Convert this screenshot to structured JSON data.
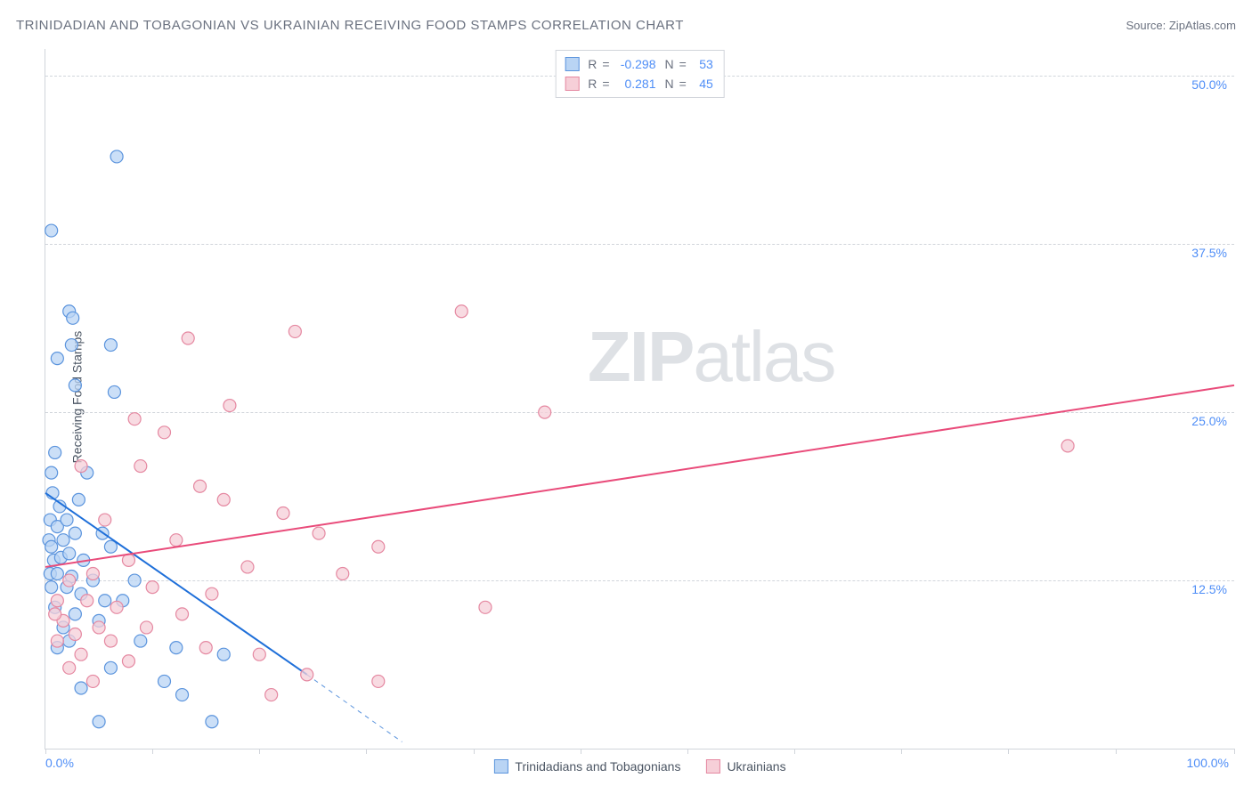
{
  "header": {
    "title": "TRINIDADIAN AND TOBAGONIAN VS UKRAINIAN RECEIVING FOOD STAMPS CORRELATION CHART",
    "source_prefix": "Source: ",
    "source_name": "ZipAtlas.com"
  },
  "watermark": {
    "zip": "ZIP",
    "atlas": "atlas"
  },
  "chart": {
    "type": "scatter-correlation",
    "ylabel": "Receiving Food Stamps",
    "xlim": [
      0,
      100
    ],
    "ylim": [
      0,
      52
    ],
    "xtick_positions_pct": [
      0,
      9,
      18,
      27,
      36,
      45,
      54,
      63,
      72,
      81,
      90,
      100
    ],
    "xaxis_label_0": "0.0%",
    "xaxis_label_100": "100.0%",
    "yticks": [
      {
        "value": 12.5,
        "label": "12.5%"
      },
      {
        "value": 25.0,
        "label": "25.0%"
      },
      {
        "value": 37.5,
        "label": "37.5%"
      },
      {
        "value": 50.0,
        "label": "50.0%"
      }
    ],
    "grid_color": "#d1d5db",
    "background_color": "#ffffff",
    "axis_label_color": "#4f8ef7",
    "marker_radius": 7,
    "marker_stroke_width": 1.2,
    "trend_line_width": 2,
    "trend_dash_width": 1,
    "series": [
      {
        "id": "trinidad",
        "name": "Trinidadians and Tobagonians",
        "fill": "#b9d4f4",
        "stroke": "#5b94dd",
        "line_color": "#1e6fd9",
        "corr": {
          "R_label": "R",
          "R_value": "-0.298",
          "N_label": "N",
          "N_value": "53",
          "eq": "="
        },
        "trend": {
          "x1": 0,
          "y1": 19.0,
          "x2": 22,
          "y2": 5.5,
          "dash_to_x": 30,
          "dash_to_y": 0.5
        },
        "points": [
          {
            "x": 0.5,
            "y": 38.5
          },
          {
            "x": 6.0,
            "y": 44.0
          },
          {
            "x": 1.0,
            "y": 29.0
          },
          {
            "x": 2.0,
            "y": 32.5
          },
          {
            "x": 2.3,
            "y": 32.0
          },
          {
            "x": 2.2,
            "y": 30.0
          },
          {
            "x": 5.5,
            "y": 30.0
          },
          {
            "x": 2.5,
            "y": 27.0
          },
          {
            "x": 5.8,
            "y": 26.5
          },
          {
            "x": 0.8,
            "y": 22.0
          },
          {
            "x": 0.5,
            "y": 20.5
          },
          {
            "x": 0.6,
            "y": 19.0
          },
          {
            "x": 3.5,
            "y": 20.5
          },
          {
            "x": 1.2,
            "y": 18.0
          },
          {
            "x": 0.4,
            "y": 17.0
          },
          {
            "x": 1.0,
            "y": 16.5
          },
          {
            "x": 1.8,
            "y": 17.0
          },
          {
            "x": 2.8,
            "y": 18.5
          },
          {
            "x": 0.3,
            "y": 15.5
          },
          {
            "x": 0.5,
            "y": 15.0
          },
          {
            "x": 1.5,
            "y": 15.5
          },
          {
            "x": 2.5,
            "y": 16.0
          },
          {
            "x": 4.8,
            "y": 16.0
          },
          {
            "x": 5.5,
            "y": 15.0
          },
          {
            "x": 0.7,
            "y": 14.0
          },
          {
            "x": 1.3,
            "y": 14.2
          },
          {
            "x": 2.0,
            "y": 14.5
          },
          {
            "x": 3.2,
            "y": 14.0
          },
          {
            "x": 0.4,
            "y": 13.0
          },
          {
            "x": 1.0,
            "y": 13.0
          },
          {
            "x": 2.2,
            "y": 12.8
          },
          {
            "x": 4.0,
            "y": 12.5
          },
          {
            "x": 7.5,
            "y": 12.5
          },
          {
            "x": 0.5,
            "y": 12.0
          },
          {
            "x": 1.8,
            "y": 12.0
          },
          {
            "x": 3.0,
            "y": 11.5
          },
          {
            "x": 5.0,
            "y": 11.0
          },
          {
            "x": 0.8,
            "y": 10.5
          },
          {
            "x": 2.5,
            "y": 10.0
          },
          {
            "x": 6.5,
            "y": 11.0
          },
          {
            "x": 1.5,
            "y": 9.0
          },
          {
            "x": 4.5,
            "y": 9.5
          },
          {
            "x": 2.0,
            "y": 8.0
          },
          {
            "x": 8.0,
            "y": 8.0
          },
          {
            "x": 11.0,
            "y": 7.5
          },
          {
            "x": 5.5,
            "y": 6.0
          },
          {
            "x": 15.0,
            "y": 7.0
          },
          {
            "x": 10.0,
            "y": 5.0
          },
          {
            "x": 3.0,
            "y": 4.5
          },
          {
            "x": 14.0,
            "y": 2.0
          },
          {
            "x": 4.5,
            "y": 2.0
          },
          {
            "x": 11.5,
            "y": 4.0
          },
          {
            "x": 1.0,
            "y": 7.5
          }
        ]
      },
      {
        "id": "ukrainian",
        "name": "Ukrainians",
        "fill": "#f6cfd8",
        "stroke": "#e588a1",
        "line_color": "#e94b7a",
        "corr": {
          "R_label": "R",
          "R_value": "0.281",
          "N_label": "N",
          "N_value": "45",
          "eq": "="
        },
        "trend": {
          "x1": 0,
          "y1": 13.5,
          "x2": 100,
          "y2": 27.0,
          "dash_to_x": 100,
          "dash_to_y": 27.0
        },
        "points": [
          {
            "x": 35.0,
            "y": 32.5
          },
          {
            "x": 21.0,
            "y": 31.0
          },
          {
            "x": 12.0,
            "y": 30.5
          },
          {
            "x": 42.0,
            "y": 25.0
          },
          {
            "x": 15.5,
            "y": 25.5
          },
          {
            "x": 7.5,
            "y": 24.5
          },
          {
            "x": 10.0,
            "y": 23.5
          },
          {
            "x": 86.0,
            "y": 22.5
          },
          {
            "x": 3.0,
            "y": 21.0
          },
          {
            "x": 8.0,
            "y": 21.0
          },
          {
            "x": 13.0,
            "y": 19.5
          },
          {
            "x": 15.0,
            "y": 18.5
          },
          {
            "x": 20.0,
            "y": 17.5
          },
          {
            "x": 5.0,
            "y": 17.0
          },
          {
            "x": 23.0,
            "y": 16.0
          },
          {
            "x": 11.0,
            "y": 15.5
          },
          {
            "x": 28.0,
            "y": 15.0
          },
          {
            "x": 7.0,
            "y": 14.0
          },
          {
            "x": 17.0,
            "y": 13.5
          },
          {
            "x": 25.0,
            "y": 13.0
          },
          {
            "x": 2.0,
            "y": 12.5
          },
          {
            "x": 4.0,
            "y": 13.0
          },
          {
            "x": 9.0,
            "y": 12.0
          },
          {
            "x": 14.0,
            "y": 11.5
          },
          {
            "x": 1.0,
            "y": 11.0
          },
          {
            "x": 3.5,
            "y": 11.0
          },
          {
            "x": 6.0,
            "y": 10.5
          },
          {
            "x": 11.5,
            "y": 10.0
          },
          {
            "x": 37.0,
            "y": 10.5
          },
          {
            "x": 1.5,
            "y": 9.5
          },
          {
            "x": 4.5,
            "y": 9.0
          },
          {
            "x": 8.5,
            "y": 9.0
          },
          {
            "x": 2.5,
            "y": 8.5
          },
          {
            "x": 5.5,
            "y": 8.0
          },
          {
            "x": 13.5,
            "y": 7.5
          },
          {
            "x": 18.0,
            "y": 7.0
          },
          {
            "x": 1.0,
            "y": 8.0
          },
          {
            "x": 3.0,
            "y": 7.0
          },
          {
            "x": 7.0,
            "y": 6.5
          },
          {
            "x": 22.0,
            "y": 5.5
          },
          {
            "x": 2.0,
            "y": 6.0
          },
          {
            "x": 28.0,
            "y": 5.0
          },
          {
            "x": 19.0,
            "y": 4.0
          },
          {
            "x": 4.0,
            "y": 5.0
          },
          {
            "x": 0.8,
            "y": 10.0
          }
        ]
      }
    ]
  }
}
